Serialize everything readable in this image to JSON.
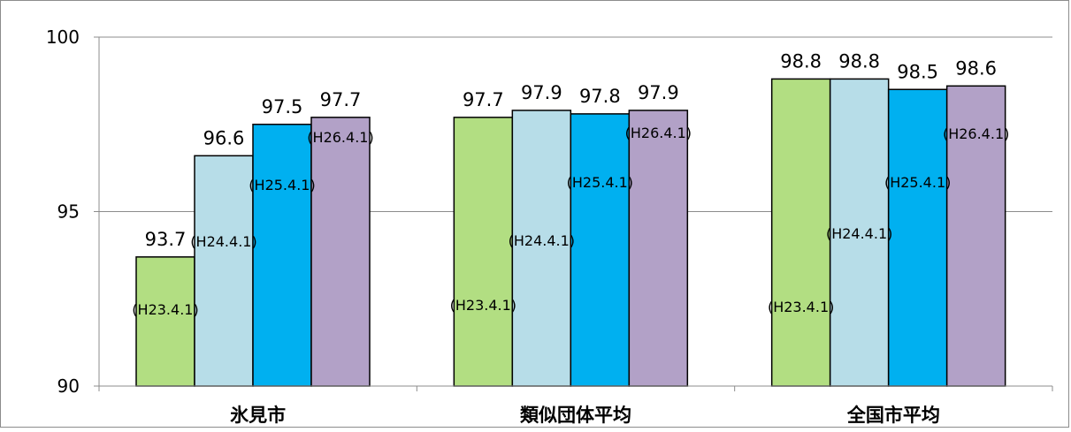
{
  "chart_data": {
    "type": "bar",
    "categories": [
      "氷見市",
      "類似団体平均",
      "全国市平均"
    ],
    "series": [
      {
        "name": "(H23.4.1)",
        "color": "#b2de82",
        "values": [
          93.7,
          97.7,
          98.8
        ]
      },
      {
        "name": "(H24.4.1)",
        "color": "#b7dde8",
        "values": [
          96.6,
          97.9,
          98.8
        ]
      },
      {
        "name": "(H25.4.1)",
        "color": "#00b0f0",
        "values": [
          97.5,
          97.8,
          98.5
        ]
      },
      {
        "name": "(H26.4.1)",
        "color": "#b2a1c7",
        "values": [
          97.7,
          97.9,
          98.6
        ]
      }
    ],
    "value_labels": [
      [
        "93.7",
        "97.7",
        "98.8"
      ],
      [
        "96.6",
        "97.9",
        "98.8"
      ],
      [
        "97.5",
        "97.8",
        "98.5"
      ],
      [
        "97.7",
        "97.9",
        "98.6"
      ]
    ],
    "yticks": [
      "90",
      "95",
      "100"
    ],
    "ylim": [
      90,
      100
    ],
    "title": "",
    "xlabel": "",
    "ylabel": "",
    "grid": true,
    "legend": "none"
  }
}
